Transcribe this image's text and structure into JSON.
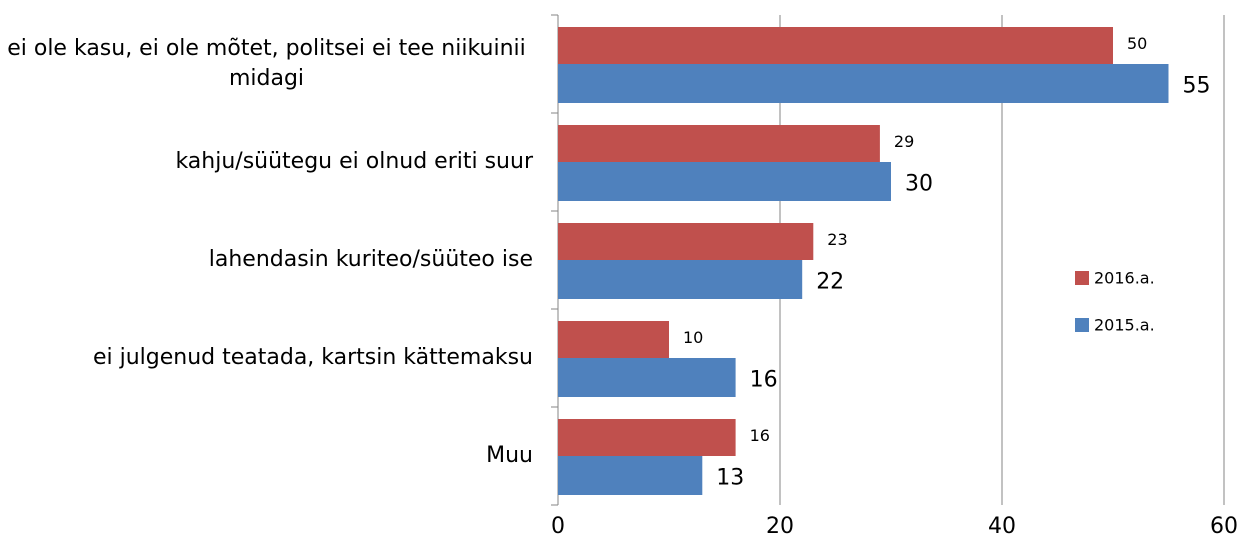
{
  "chart_data": {
    "type": "bar",
    "orientation": "horizontal",
    "categories": [
      "ei ole kasu, ei ole mõtet, politsei ei tee niikuinii midagi",
      "kahju/süütegu ei olnud eriti suur",
      "lahendasin kuriteo/süüteo ise",
      "ei julgenud teatada, kartsin kättemaksu",
      "Muu"
    ],
    "series": [
      {
        "name": "2016.a.",
        "color": "#c0504d",
        "values": [
          50,
          29,
          23,
          10,
          16
        ]
      },
      {
        "name": "2015.a.",
        "color": "#4f81bd",
        "values": [
          55,
          30,
          22,
          16,
          13
        ]
      }
    ],
    "xlim": [
      0,
      60
    ],
    "xticks": [
      0,
      20,
      40,
      60
    ],
    "grid": true,
    "legend": "right"
  }
}
